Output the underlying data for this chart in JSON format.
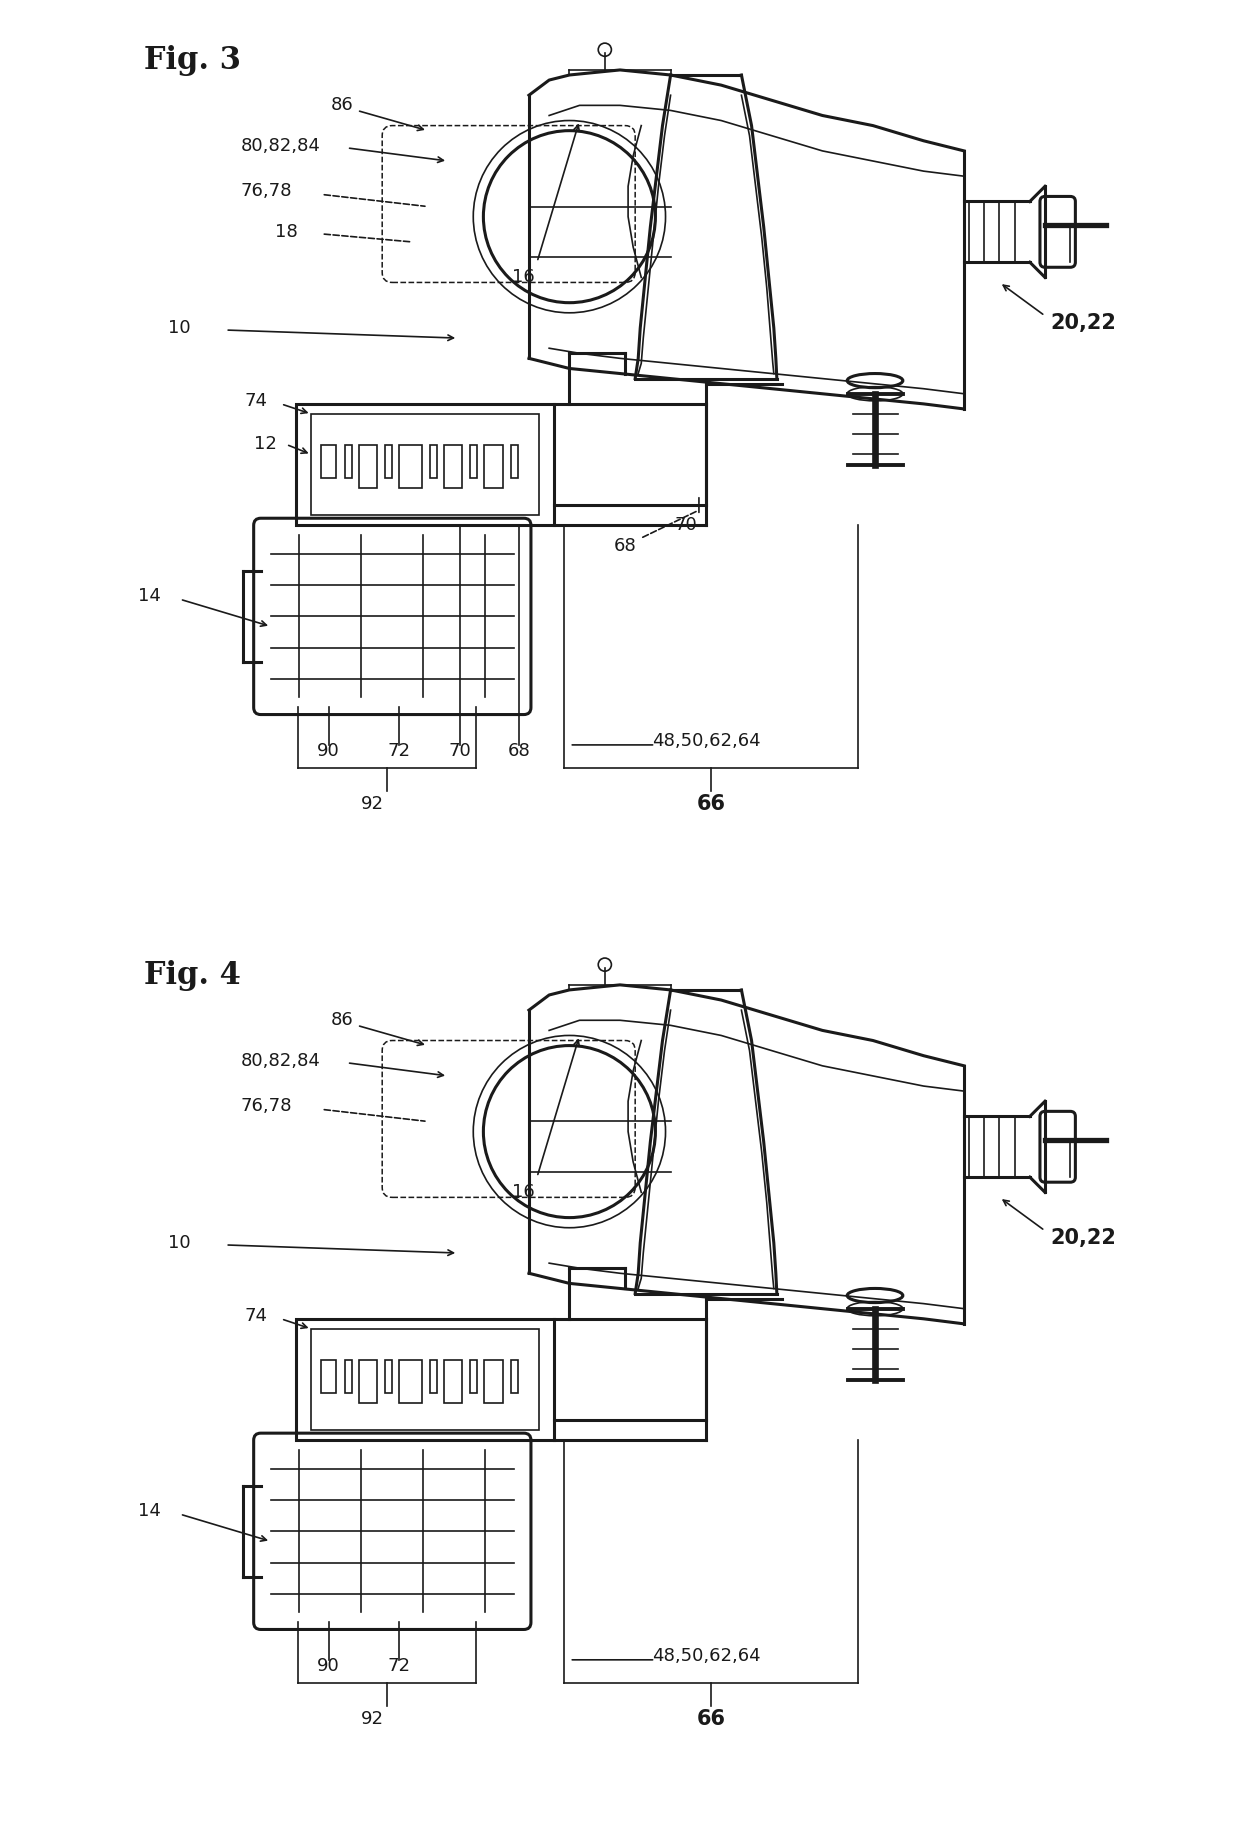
{
  "bg_color": "#ffffff",
  "line_color": "#1a1a1a",
  "fig3_title": "Fig. 3",
  "fig4_title": "Fig. 4",
  "title_fontsize": 22,
  "label_fontsize": 13,
  "bold_label_fontsize": 15
}
